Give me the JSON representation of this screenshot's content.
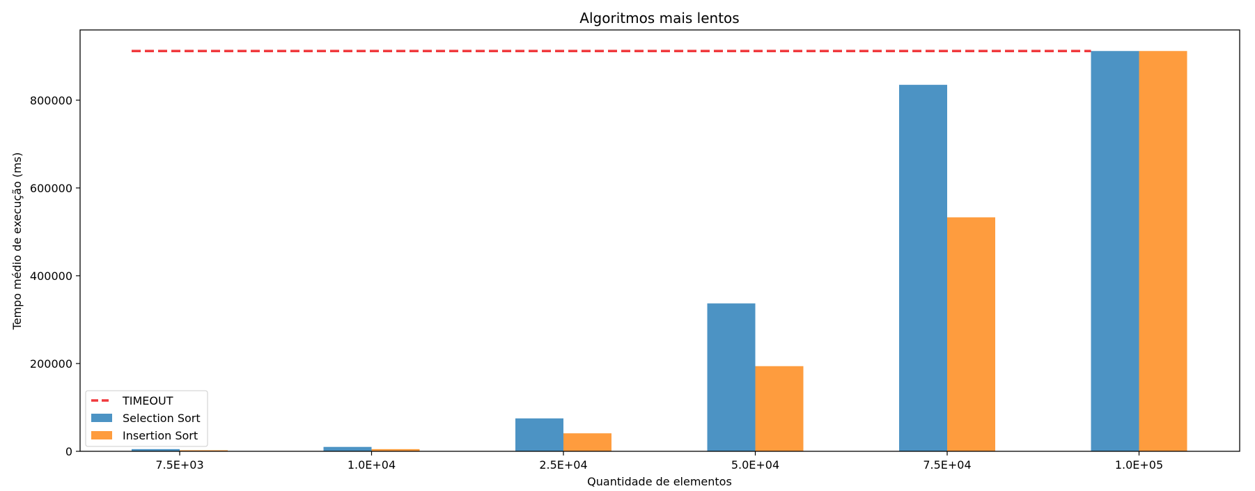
{
  "chart_data": {
    "type": "bar",
    "title": "Algoritmos mais lentos",
    "xlabel": "Quantidade de elementos",
    "ylabel": "Tempo médio de execução (ms)",
    "categories": [
      "7.5E+03",
      "1.0E+04",
      "2.5E+04",
      "5.0E+04",
      "7.5E+04",
      "1.0E+05"
    ],
    "series": [
      {
        "name": "Selection Sort",
        "color": "#4c93c4",
        "values": [
          5000,
          10000,
          75000,
          337000,
          835000,
          912000
        ]
      },
      {
        "name": "Insertion Sort",
        "color": "#fe9c3e",
        "values": [
          2500,
          5000,
          41000,
          194000,
          533000,
          912000
        ]
      }
    ],
    "timeout": {
      "name": "TIMEOUT",
      "value": 912000,
      "color": "#f0393d",
      "style": "dashed"
    },
    "yticks": [
      0,
      200000,
      400000,
      600000,
      800000
    ],
    "ylim": [
      0,
      960000
    ],
    "legend_position": "lower-left",
    "grid": false
  }
}
